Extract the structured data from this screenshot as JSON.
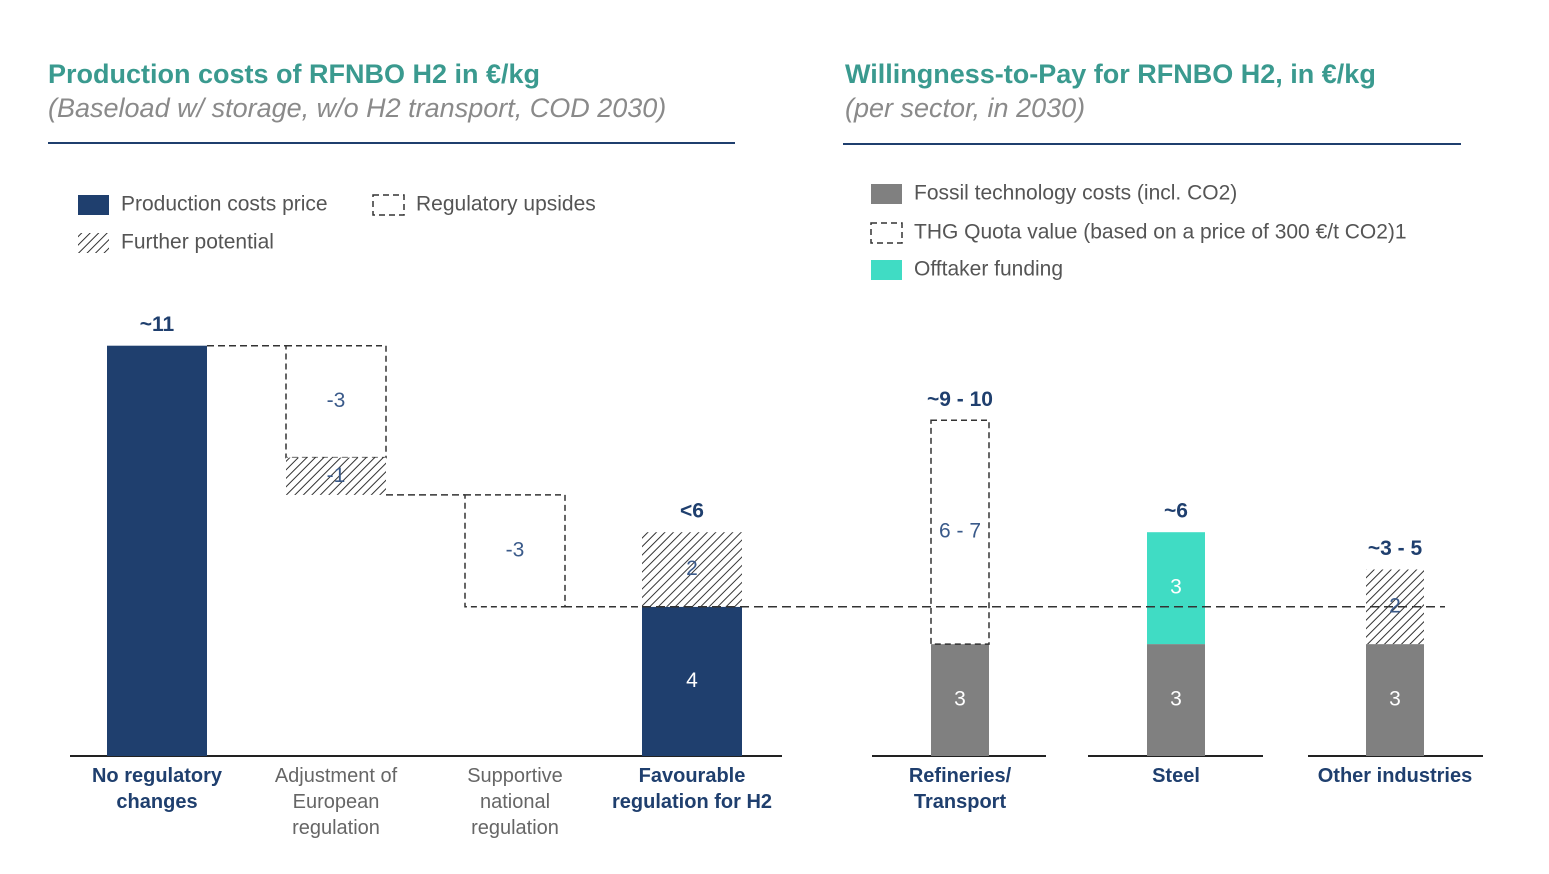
{
  "chart_data": [
    {
      "type": "waterfall",
      "title": "Production costs of RFNBO H2 in €/kg",
      "subtitle": "(Baseload w/ storage, w/o H2 transport, COD 2030)",
      "categories": [
        "No regulatory changes",
        "Adjustment of European regulation",
        "Supportive national regulation",
        "Favourable regulation for H2"
      ],
      "category_bold": [
        true,
        false,
        false,
        true
      ],
      "series": [
        {
          "name": "Production costs price",
          "color": "#1f3f6e",
          "style": "solid",
          "values": [
            11,
            null,
            null,
            4
          ]
        },
        {
          "name": "Regulatory upsides",
          "color": "#333333",
          "style": "dashed",
          "values": [
            null,
            -3,
            -3,
            null
          ]
        },
        {
          "name": "Further potential",
          "color": "#333333",
          "style": "hatched",
          "values": [
            null,
            -1,
            null,
            2
          ]
        }
      ],
      "total_labels": [
        "~11",
        null,
        null,
        "<6"
      ],
      "legend": "top-left"
    },
    {
      "type": "stacked_bar",
      "title": "Willingness-to-Pay for RFNBO H2, in €/kg",
      "subtitle": "(per sector, in 2030)",
      "categories": [
        "Refineries/ Transport",
        "Steel",
        "Other industries"
      ],
      "category_bold": [
        true,
        true,
        true
      ],
      "series": [
        {
          "name": "Fossil technology costs (incl. CO2)",
          "color": "#808080",
          "style": "solid",
          "values": [
            3,
            3,
            3
          ]
        },
        {
          "name": "THG Quota value (based on a price of 300 €/t CO2)1",
          "color": "#333333",
          "style": "dashed",
          "values": [
            6,
            null,
            null
          ],
          "value_labels": [
            "6 - 7",
            null,
            null
          ]
        },
        {
          "name": "Offtaker funding",
          "color": "#40dcc4",
          "style": "solid",
          "values": [
            null,
            3,
            null
          ]
        },
        {
          "name": "Further potential",
          "color": "#333333",
          "style": "hatched",
          "values": [
            null,
            null,
            2
          ],
          "legend": false
        }
      ],
      "total_labels": [
        "~9 - 10",
        "~6",
        "~3 - 5"
      ],
      "legend": "top-left"
    }
  ]
}
